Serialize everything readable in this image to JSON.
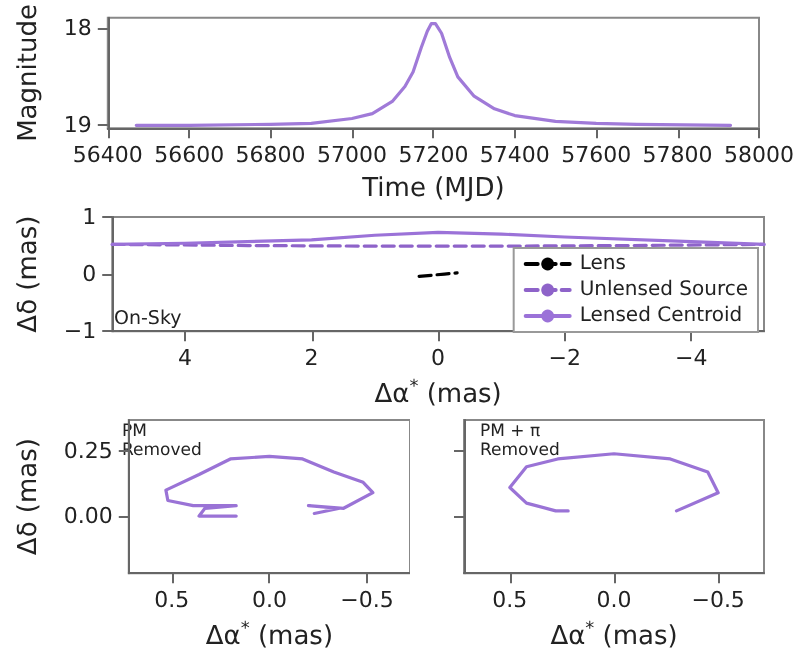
{
  "chart_data": [
    {
      "type": "line",
      "xlabel": "Time (MJD)",
      "ylabel": "Magnitude",
      "xlim": [
        56400,
        58000
      ],
      "xticks": [
        56400,
        56600,
        56800,
        57000,
        57200,
        57400,
        57600,
        57800,
        58000
      ],
      "ylim": [
        19.03,
        17.89
      ],
      "yticks": [
        18,
        19
      ],
      "marker": "none",
      "series": [
        {
          "color": "#a07ad8",
          "x": [
            56470,
            56600,
            56800,
            56900,
            57000,
            57050,
            57100,
            57130,
            57150,
            57170,
            57185,
            57195,
            57205,
            57220,
            57240,
            57260,
            57300,
            57350,
            57400,
            57500,
            57600,
            57700,
            57930
          ],
          "values": [
            19.0,
            19.0,
            18.99,
            18.98,
            18.93,
            18.88,
            18.75,
            18.6,
            18.45,
            18.2,
            18.03,
            17.95,
            17.95,
            18.05,
            18.3,
            18.5,
            18.7,
            18.83,
            18.9,
            18.96,
            18.98,
            18.99,
            19.0
          ]
        }
      ]
    },
    {
      "type": "line",
      "xlabel": "Δα$^{*}$ (mas)",
      "ylabel": "Δδ (mas)",
      "xlim": [
        5.15,
        -5.15
      ],
      "xticks": [
        4,
        2,
        0,
        {
          "value": -2,
          "label": "−2"
        },
        {
          "value": -4,
          "label": "−4"
        }
      ],
      "ylim": [
        -1,
        1
      ],
      "yticks": [
        {
          "value": -1,
          "label": "−1"
        },
        0,
        1
      ],
      "marker": "none",
      "legend": "bottom right",
      "annotations": [
        "On-Sky"
      ],
      "series": [
        {
          "name": "Lens",
          "color": "#000000",
          "line_style": "dashed",
          "x": [
            0.3,
            0.1,
            -0.1,
            -0.3
          ],
          "values": [
            -0.04,
            -0.02,
            0.0,
            0.02
          ]
        },
        {
          "name": "Unlensed Source",
          "color": "#8e63c9",
          "line_style": "dashed",
          "x": [
            5.15,
            3,
            1,
            0,
            -1,
            -3,
            -5.15
          ],
          "values": [
            0.52,
            0.5,
            0.49,
            0.49,
            0.49,
            0.5,
            0.52
          ]
        },
        {
          "name": "Lensed Centroid",
          "color": "#9b72d8",
          "line_style": "solid",
          "x": [
            5.15,
            4,
            2,
            1,
            0,
            -1,
            -2,
            -4,
            -5.15
          ],
          "values": [
            0.52,
            0.54,
            0.6,
            0.68,
            0.73,
            0.7,
            0.65,
            0.57,
            0.52
          ]
        }
      ]
    },
    {
      "type": "line",
      "xlabel": "Δα$^{*}$ (mas)",
      "ylabel": "Δδ (mas)",
      "xlim": [
        0.72,
        -0.72
      ],
      "xticks": [
        0.5,
        {
          "value": 0,
          "label": "0.0"
        },
        {
          "value": -0.5,
          "label": "−0.5"
        }
      ],
      "ylim": [
        -0.22,
        0.37
      ],
      "yticks": [
        {
          "value": 0,
          "label": "0.00"
        },
        0.25
      ],
      "marker": "none",
      "annotations": [
        "PM\nRemoved"
      ],
      "series": [
        {
          "color": "#9a73d6",
          "x": [
            -0.23,
            -0.36,
            -0.2,
            -0.38,
            -0.53,
            -0.48,
            -0.33,
            -0.17,
            0,
            0.2,
            0.36,
            0.53,
            0.52,
            0.39,
            0.27,
            0.17,
            0.33,
            0.36,
            0.17
          ],
          "values": [
            0.01,
            0.03,
            0.04,
            0.03,
            0.09,
            0.13,
            0.17,
            0.22,
            0.23,
            0.22,
            0.16,
            0.1,
            0.06,
            0.04,
            0.04,
            0.04,
            0.03,
            0.0,
            0.0
          ]
        }
      ]
    },
    {
      "type": "line",
      "xlabel": "Δα$^{*}$ (mas)",
      "xlim": [
        0.72,
        -0.72
      ],
      "xticks": [
        0.5,
        {
          "value": 0,
          "label": "0.0"
        },
        {
          "value": -0.5,
          "label": "−0.5"
        }
      ],
      "ylim": [
        -0.22,
        0.37
      ],
      "yticks": [
        0,
        0.25
      ],
      "tick_labels": "x",
      "marker": "none",
      "annotations": [
        "PM + π\nRemoved"
      ],
      "series": [
        {
          "color": "#9a73d6",
          "x": [
            -0.3,
            -0.5,
            -0.45,
            -0.27,
            0,
            0.27,
            0.42,
            0.5,
            0.42,
            0.28,
            0.22
          ],
          "values": [
            0.02,
            0.09,
            0.17,
            0.22,
            0.24,
            0.22,
            0.19,
            0.11,
            0.05,
            0.02,
            0.02
          ]
        }
      ]
    }
  ]
}
